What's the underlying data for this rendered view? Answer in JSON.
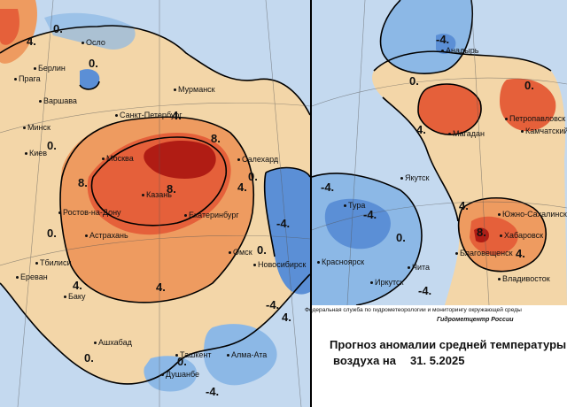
{
  "colors": {
    "very_cold": "#5b8fd6",
    "cold": "#8cb8e6",
    "cool": "#c4d9ef",
    "warm": "#f3d6a8",
    "hot": "#ee9b60",
    "very_hot": "#e5603a",
    "extreme": "#b01c14",
    "contour": "#000000",
    "grid": "#555555"
  },
  "west": {
    "cities": [
      {
        "name": "Осло"
      },
      {
        "name": "Берлин"
      },
      {
        "name": "Прага"
      },
      {
        "name": "Варшава"
      },
      {
        "name": "Мурманск"
      },
      {
        "name": "Санкт-Петербург"
      },
      {
        "name": "Минск"
      },
      {
        "name": "Киев"
      },
      {
        "name": "Москва"
      },
      {
        "name": "Салехард"
      },
      {
        "name": "Казань"
      },
      {
        "name": "Ростов-на-Дону"
      },
      {
        "name": "Екатеринбург"
      },
      {
        "name": "Астрахань"
      },
      {
        "name": "Омск"
      },
      {
        "name": "Новосибирск"
      },
      {
        "name": "Тбилиси"
      },
      {
        "name": "Ереван"
      },
      {
        "name": "Баку"
      },
      {
        "name": "Ашхабад"
      },
      {
        "name": "Ташкент"
      },
      {
        "name": "Душанбе"
      },
      {
        "name": "Алма-Ата"
      }
    ],
    "isolines": [
      "0.",
      "4.",
      "0.",
      "4.",
      "0.",
      "8.",
      "8.",
      "4.",
      "0.",
      "8.",
      "-4.",
      "0.",
      "4.",
      "0.",
      "4.",
      "-4.",
      "0.",
      "4.",
      "0.",
      "-4."
    ]
  },
  "east": {
    "cities": [
      {
        "name": "Анадырь"
      },
      {
        "name": "Петропавловск"
      },
      {
        "name": "Магадан"
      },
      {
        "name": "Камчатский"
      },
      {
        "name": "Якутск"
      },
      {
        "name": "Южно-Сахалинск"
      },
      {
        "name": "Тура"
      },
      {
        "name": "Хабаровск"
      },
      {
        "name": "Благовещенск"
      },
      {
        "name": "Красноярск"
      },
      {
        "name": "Чита"
      },
      {
        "name": "Иркутск"
      },
      {
        "name": "Владивосток"
      }
    ],
    "isolines": [
      "-4.",
      "0.",
      "4.",
      "0.",
      "-4.",
      "-4.",
      "0.",
      "-4.",
      "8.",
      "4.",
      "4."
    ]
  },
  "footer": {
    "agency": "Федеральная служба по гидрометеорологии и мониторингу окружающей среды",
    "center": "Гидрометцентр России",
    "title_line1": "Прогноз аномалии средней температуры",
    "title_line2_prefix": "воздуха на",
    "date": "31. 5.2025"
  }
}
